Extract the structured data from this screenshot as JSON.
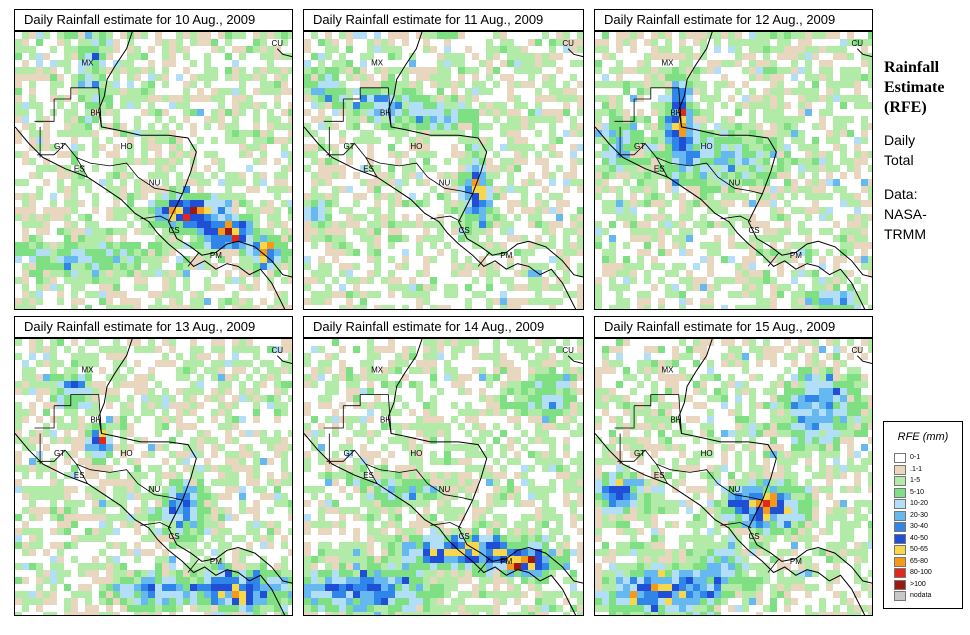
{
  "panels": [
    {
      "title": "Daily Rainfall estimate for  10 Aug., 2009",
      "seed": 11,
      "hotspots": [
        [
          0.62,
          0.64,
          0.1,
          0.05,
          4.2
        ],
        [
          0.76,
          0.72,
          0.09,
          0.05,
          3.8
        ],
        [
          0.9,
          0.79,
          0.05,
          0.05,
          3.0
        ],
        [
          0.25,
          0.8,
          0.2,
          0.06,
          1.3
        ],
        [
          0.28,
          0.12,
          0.05,
          0.15,
          1.2
        ]
      ]
    },
    {
      "title": "Daily Rainfall estimate for  11 Aug., 2009",
      "seed": 23,
      "hotspots": [
        [
          0.6,
          0.58,
          0.05,
          0.1,
          3.2
        ],
        [
          0.28,
          0.26,
          0.08,
          0.06,
          1.8
        ],
        [
          0.48,
          0.3,
          0.12,
          0.06,
          1.4
        ],
        [
          0.05,
          0.65,
          0.05,
          0.05,
          1.6
        ],
        [
          0.07,
          0.2,
          0.06,
          0.06,
          1.4
        ]
      ]
    },
    {
      "title": "Daily Rainfall estimate for  12 Aug., 2009",
      "seed": 37,
      "hotspots": [
        [
          0.3,
          0.3,
          0.04,
          0.12,
          3.6
        ],
        [
          0.42,
          0.45,
          0.2,
          0.1,
          1.6
        ],
        [
          0.08,
          0.4,
          0.05,
          0.08,
          1.6
        ],
        [
          0.85,
          0.96,
          0.08,
          0.04,
          1.8
        ]
      ]
    },
    {
      "title": "Daily Rainfall estimate for  13 Aug., 2009",
      "seed": 41,
      "hotspots": [
        [
          0.3,
          0.37,
          0.04,
          0.05,
          3.4
        ],
        [
          0.6,
          0.6,
          0.06,
          0.08,
          2.6
        ],
        [
          0.8,
          0.9,
          0.14,
          0.06,
          3.2
        ],
        [
          0.5,
          0.9,
          0.12,
          0.06,
          2.0
        ],
        [
          0.2,
          0.18,
          0.08,
          0.05,
          1.4
        ]
      ]
    },
    {
      "title": "Daily Rainfall estimate for  14 Aug., 2009",
      "seed": 53,
      "hotspots": [
        [
          0.55,
          0.76,
          0.2,
          0.05,
          3.0
        ],
        [
          0.78,
          0.8,
          0.08,
          0.04,
          3.6
        ],
        [
          0.2,
          0.9,
          0.22,
          0.07,
          2.3
        ],
        [
          0.85,
          0.2,
          0.1,
          0.06,
          1.5
        ],
        [
          0.35,
          0.55,
          0.1,
          0.05,
          1.4
        ]
      ]
    },
    {
      "title": "Daily Rainfall estimate for  15 Aug., 2009",
      "seed": 67,
      "hotspots": [
        [
          0.6,
          0.6,
          0.12,
          0.07,
          3.2
        ],
        [
          0.08,
          0.55,
          0.08,
          0.06,
          2.5
        ],
        [
          0.25,
          0.9,
          0.18,
          0.07,
          3.0
        ],
        [
          0.8,
          0.25,
          0.12,
          0.12,
          2.0
        ],
        [
          0.45,
          0.8,
          0.08,
          0.06,
          1.6
        ]
      ]
    }
  ],
  "map_labels": [
    "MX",
    "BH",
    "GT",
    "HO",
    "ES",
    "NU",
    "CS",
    "PM",
    "CU"
  ],
  "side": {
    "title1": "Rainfall",
    "title2": "Estimate",
    "title3": "(RFE)",
    "line1": "Daily",
    "line2": "Total",
    "line3": "Data:",
    "line4": "NASA-",
    "line5": "TRMM"
  },
  "legend": {
    "title": "RFE (mm)",
    "items": [
      {
        "label": "0-1",
        "color": "#ffffff"
      },
      {
        "label": ".1-1",
        "color": "#e8d6bf"
      },
      {
        "label": "1-5",
        "color": "#b2eba8"
      },
      {
        "label": "5-10",
        "color": "#7ee083"
      },
      {
        "label": "10-20",
        "color": "#b2dff7"
      },
      {
        "label": "20-30",
        "color": "#66b8f0"
      },
      {
        "label": "30-40",
        "color": "#2f86e8"
      },
      {
        "label": "40-50",
        "color": "#1f4fd6"
      },
      {
        "label": "50-65",
        "color": "#f7d84a"
      },
      {
        "label": "65-80",
        "color": "#f59a18"
      },
      {
        "label": "80-100",
        "color": "#e0281c"
      },
      {
        ">100": null,
        "label": ">100",
        "color": "#9a1a12"
      },
      {
        "label": "nodata",
        "color": "#c8c8c8"
      }
    ]
  }
}
